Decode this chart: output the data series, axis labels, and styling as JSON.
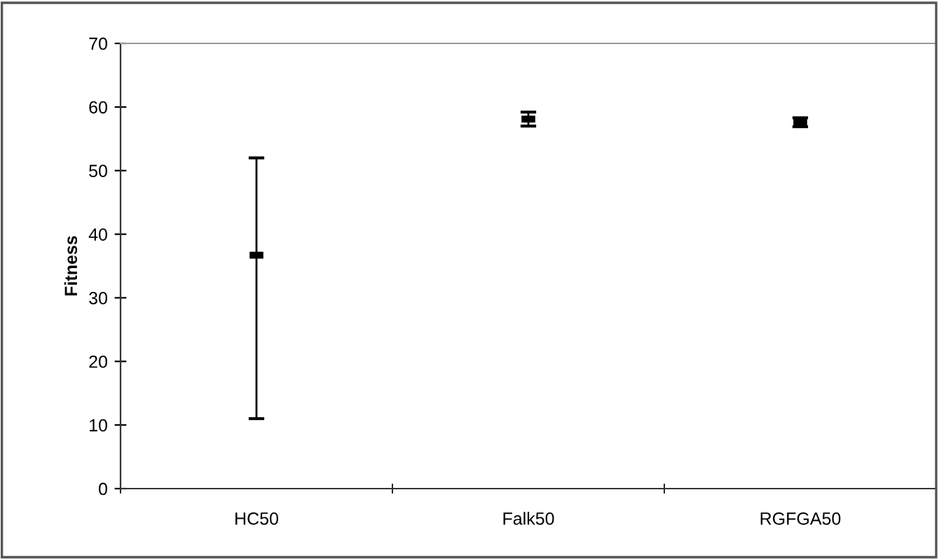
{
  "chart_data": {
    "type": "scatter",
    "ylabel": "Fitness",
    "categories": [
      "HC50",
      "Falk50",
      "RGFGA50"
    ],
    "values": [
      36.7,
      58.1,
      57.6
    ],
    "errors": [
      [
        11,
        52
      ],
      [
        57.0,
        59.2
      ],
      [
        56.9,
        58.3
      ]
    ],
    "color": "#000000",
    "ylim": [
      0,
      70
    ],
    "yticks": [
      0,
      10,
      20,
      30,
      40,
      50,
      60,
      70
    ],
    "grid": false,
    "legend": false
  }
}
